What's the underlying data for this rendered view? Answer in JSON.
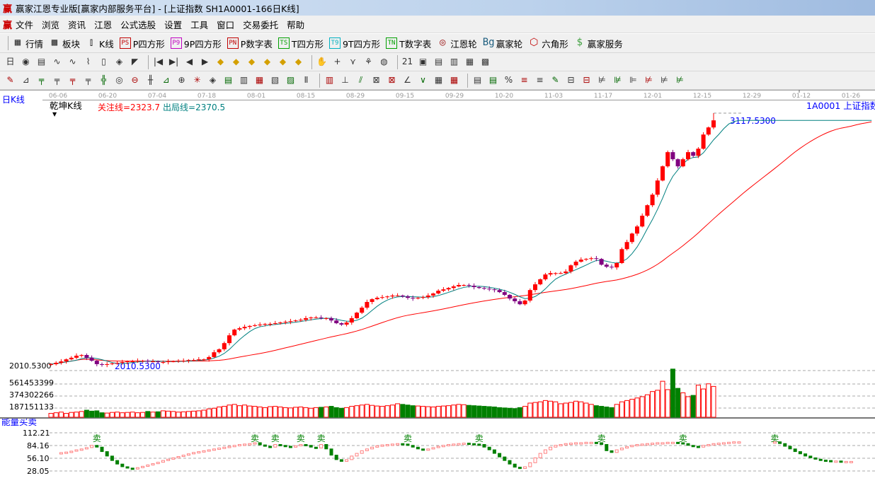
{
  "window": {
    "title": "赢家江恩专业版[赢家内部服务平台] - [上证指数  SH1A0001-166日K线]",
    "logo": "赢"
  },
  "menu": [
    "文件",
    "浏览",
    "资讯",
    "江恩",
    "公式选股",
    "设置",
    "工具",
    "窗口",
    "交易委托",
    "帮助"
  ],
  "toolbar1": [
    {
      "icon": "quote-table-icon",
      "glyph": "▦",
      "label": "行情"
    },
    {
      "icon": "sector-icon",
      "glyph": "▩",
      "label": "板块"
    },
    {
      "icon": "kline-icon",
      "glyph": "⫾",
      "label": "K线"
    },
    {
      "icon": "ps-icon",
      "glyph": "PS",
      "label": "P四方形",
      "color": "#c00000"
    },
    {
      "icon": "p9-icon",
      "glyph": "P9",
      "label": "9P四方形",
      "color": "#c000c0"
    },
    {
      "icon": "pn-icon",
      "glyph": "PN",
      "label": "P数字表",
      "color": "#c00000"
    },
    {
      "icon": "ts-icon",
      "glyph": "TS",
      "label": "T四方形",
      "color": "#00a000"
    },
    {
      "icon": "t9-icon",
      "glyph": "T9",
      "label": "9T四方形",
      "color": "#00b0c0"
    },
    {
      "icon": "tn-icon",
      "glyph": "TN",
      "label": "T数字表",
      "color": "#00a000"
    },
    {
      "icon": "gann-wheel-icon",
      "glyph": "◎",
      "label": "江恩轮",
      "color": "#a02020"
    },
    {
      "icon": "big-wheel-icon",
      "glyph": "Bg",
      "label": "赢家轮",
      "color": "#206080"
    },
    {
      "icon": "hexagon-icon",
      "glyph": "⬡",
      "label": "六角形",
      "color": "#c00000"
    },
    {
      "icon": "dollar-icon",
      "glyph": "$",
      "label": "赢家服务",
      "color": "#40a040"
    }
  ],
  "toolbar2_icons": [
    "period-day-dropdown",
    "analysis-icon",
    "notes-icon",
    "indicator-icon",
    "indicator2-icon",
    "drawing-icon",
    "candle-select-dropdown",
    "indicator-toggle-icon",
    "triangle-icon",
    "first-icon",
    "last-icon",
    "prev-icon",
    "next-icon",
    "diamond-1-icon",
    "diamond-2-icon",
    "diamond-3-icon",
    "diamond-4-icon",
    "diamond-5-icon",
    "diamond-6-icon",
    "hand-icon",
    "crosshair-icon",
    "line-tool-icon",
    "pattern-icon",
    "cycle-icon",
    "calendar-icon",
    "calc-icon",
    "list-icon",
    "save-icon",
    "screen-icon",
    "car-icon"
  ],
  "toolbar2_glyphs": [
    "日",
    "◉",
    "▤",
    "∿",
    "∿",
    "⌇",
    "▯",
    "◈",
    "◤",
    "|◀",
    "▶|",
    "◀",
    "▶",
    "◆",
    "◆",
    "◆",
    "◆",
    "◆",
    "◆",
    "✋",
    "+",
    "⋎",
    "⚘",
    "◍",
    "21",
    "▣",
    "▤",
    "▥",
    "▦",
    "▩"
  ],
  "toolbar3_glyphs": [
    "✎",
    "⊿",
    "╤",
    "╤",
    "╤",
    "╤",
    "╬",
    "◎",
    "⊖",
    "╫",
    "⊿",
    "⊕",
    "✳",
    "◈",
    "▤",
    "▥",
    "▦",
    "▧",
    "▨",
    "Ⅱ",
    "▥",
    "⊥",
    "⫽",
    "⊠",
    "⊠",
    "∠",
    "∨",
    "▦",
    "▦",
    "▤",
    "▤",
    "%",
    "≡",
    "≡",
    "✎",
    "⊟",
    "⊟",
    "⊭",
    "⊯",
    "⊫",
    "⊭",
    "⊭",
    "⊭"
  ],
  "chart": {
    "panel_title": "日K线",
    "indicator_name": "乾坤K线",
    "focus_line": "关注线=2323.7",
    "exit_line": "出局线=2370.5",
    "symbol": "1A0001  上证指数",
    "high_label": "3117.5300",
    "low_label": "2010.5300",
    "axis_low": "2010.5300",
    "volume_ticks": [
      "561453399",
      "374302266",
      "187151133"
    ],
    "volume_tick_values": [
      561453399,
      374302266,
      187151133
    ],
    "date_ticks": [
      "06-06",
      "06-20",
      "07-04",
      "07-18",
      "08-01",
      "08-15",
      "08-29",
      "09-15",
      "09-29",
      "10-20",
      "11-03",
      "11-17",
      "12-01",
      "12-15",
      "12-29",
      "01-12",
      "01-26"
    ],
    "colors": {
      "up": "#ff0000",
      "down": "#800080",
      "ma_short": "#008080",
      "ma_long": "#ff0000",
      "vol_up": "#ff0000",
      "vol_down": "#008000",
      "label_blue": "#0000ff"
    }
  },
  "chart_data": {
    "type": "candlestick",
    "price_range": [
      2010.53,
      3117.53
    ],
    "close": [
      2020,
      2026,
      2032,
      2041,
      2048,
      2057,
      2060,
      2048,
      2035,
      2020,
      2017,
      2020,
      2023,
      2026,
      2029,
      2032,
      2032,
      2035,
      2035,
      2032,
      2032,
      2029,
      2029,
      2032,
      2032,
      2035,
      2035,
      2038,
      2038,
      2041,
      2041,
      2051,
      2072,
      2085,
      2112,
      2146,
      2171,
      2177,
      2183,
      2187,
      2190,
      2193,
      2196,
      2196,
      2199,
      2202,
      2205,
      2208,
      2211,
      2214,
      2221,
      2224,
      2224,
      2221,
      2221,
      2211,
      2199,
      2193,
      2202,
      2221,
      2245,
      2267,
      2292,
      2304,
      2310,
      2313,
      2316,
      2320,
      2320,
      2316,
      2310,
      2307,
      2310,
      2313,
      2320,
      2329,
      2341,
      2347,
      2353,
      2360,
      2366,
      2366,
      2363,
      2357,
      2353,
      2350,
      2347,
      2344,
      2335,
      2323,
      2307,
      2295,
      2282,
      2298,
      2344,
      2369,
      2391,
      2412,
      2418,
      2418,
      2418,
      2425,
      2452,
      2468,
      2477,
      2480,
      2483,
      2480,
      2455,
      2446,
      2443,
      2462,
      2523,
      2554,
      2591,
      2622,
      2669,
      2715,
      2761,
      2823,
      2885,
      2947,
      2916,
      2885,
      2916,
      2947,
      2931,
      2962,
      3024,
      3055,
      3086
    ],
    "volume": [
      60000000,
      70000000,
      80000000,
      60000000,
      75000000,
      80000000,
      90000000,
      110000000,
      95000000,
      100000000,
      70000000,
      65000000,
      75000000,
      80000000,
      70000000,
      75000000,
      80000000,
      70000000,
      75000000,
      90000000,
      80000000,
      85000000,
      100000000,
      95000000,
      90000000,
      80000000,
      85000000,
      90000000,
      95000000,
      100000000,
      110000000,
      130000000,
      140000000,
      160000000,
      170000000,
      190000000,
      200000000,
      180000000,
      190000000,
      175000000,
      170000000,
      160000000,
      150000000,
      165000000,
      170000000,
      160000000,
      150000000,
      145000000,
      155000000,
      160000000,
      150000000,
      140000000,
      150000000,
      155000000,
      160000000,
      170000000,
      150000000,
      140000000,
      150000000,
      170000000,
      180000000,
      190000000,
      200000000,
      185000000,
      175000000,
      170000000,
      180000000,
      190000000,
      210000000,
      200000000,
      190000000,
      180000000,
      175000000,
      170000000,
      165000000,
      160000000,
      170000000,
      175000000,
      180000000,
      190000000,
      200000000,
      195000000,
      185000000,
      180000000,
      175000000,
      170000000,
      165000000,
      160000000,
      150000000,
      145000000,
      140000000,
      135000000,
      150000000,
      170000000,
      220000000,
      230000000,
      240000000,
      260000000,
      250000000,
      240000000,
      210000000,
      220000000,
      230000000,
      250000000,
      240000000,
      220000000,
      200000000,
      180000000,
      170000000,
      160000000,
      150000000,
      200000000,
      240000000,
      260000000,
      280000000,
      300000000,
      320000000,
      350000000,
      400000000,
      420000000,
      560000000,
      430000000,
      750000000,
      450000000,
      380000000,
      320000000,
      340000000,
      500000000,
      440000000,
      520000000,
      480000000
    ],
    "energy": {
      "name": "能量买卖",
      "ticks": [
        "112.21",
        "84.16",
        "56.10",
        "28.05"
      ],
      "tick_values": [
        112.21,
        84.16,
        56.1,
        28.05
      ],
      "sell_label": "卖",
      "sell_signals": [
        9,
        40,
        44,
        49,
        53,
        70,
        84,
        108,
        124,
        142
      ],
      "values": [
        null,
        null,
        67.7,
        69,
        71,
        74,
        76,
        79,
        84,
        80,
        70,
        60,
        50,
        42,
        36,
        33,
        32,
        34,
        37,
        40,
        43,
        46,
        50,
        53,
        56,
        59,
        62,
        65,
        68,
        70,
        72,
        74,
        76,
        78,
        80,
        82,
        84,
        86,
        87,
        88,
        90,
        85,
        82,
        80,
        86,
        84,
        82,
        80,
        83,
        86,
        84,
        80,
        78,
        86,
        76,
        62,
        52,
        48,
        52,
        60,
        66,
        72,
        76,
        80,
        83,
        85,
        86,
        87,
        88,
        87,
        84,
        80,
        76,
        74,
        76,
        79,
        82,
        84,
        86,
        87,
        88,
        89,
        88,
        87,
        86,
        80,
        74,
        66,
        58,
        50,
        42,
        35,
        32,
        36,
        45,
        56,
        66,
        74,
        80,
        84,
        86,
        88,
        89,
        90,
        90,
        91,
        91,
        90,
        86,
        72,
        68,
        74,
        78,
        81,
        84,
        86,
        87,
        88,
        89,
        90,
        90,
        91,
        91,
        90,
        88,
        84,
        82,
        80,
        84,
        86,
        88,
        89,
        90,
        91,
        92,
        92,
        null,
        null,
        null,
        null,
        null,
        null,
        92,
        88,
        82,
        76,
        70,
        65,
        60,
        56,
        53,
        51,
        50,
        49,
        49,
        48,
        48,
        48
      ]
    }
  }
}
